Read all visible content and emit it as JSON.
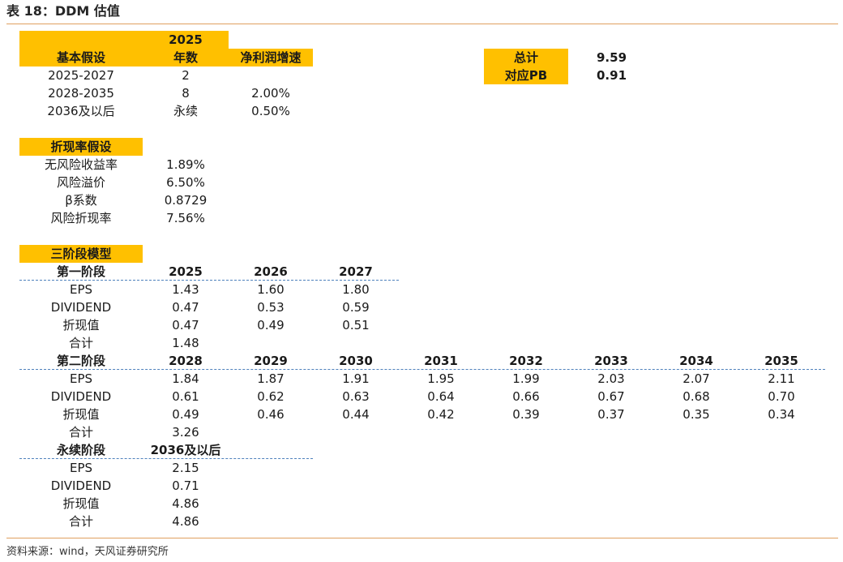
{
  "title": "表 18：DDM 估值",
  "source": "资料来源：wind，天风证券研究所",
  "colors": {
    "accent": "#ffc000",
    "rule": "#e0a060",
    "dashed": "#4f81bd"
  },
  "growth": {
    "h_year_top": "2025",
    "h_period": "基本假设",
    "h_years": "年数",
    "h_growth": "净利润增速",
    "rows": [
      {
        "period": "2025-2027",
        "years": "2",
        "growth": ""
      },
      {
        "period": "2028-2035",
        "years": "8",
        "growth": "2.00%"
      },
      {
        "period": "2036及以后",
        "years": "永续",
        "growth": "0.50%"
      }
    ]
  },
  "summary": {
    "total_label": "总计",
    "total_value": "9.59",
    "pb_label": "对应PB",
    "pb_value": "0.91"
  },
  "discount": {
    "header": "折现率假设",
    "rows": [
      {
        "label": "无风险收益率",
        "value": "1.89%"
      },
      {
        "label": "风险溢价",
        "value": "6.50%"
      },
      {
        "label": "β系数",
        "value": "0.8729"
      },
      {
        "label": "风险折现率",
        "value": "7.56%"
      }
    ]
  },
  "model": {
    "header": "三阶段模型",
    "stage1": {
      "label": "第一阶段",
      "years": [
        "2025",
        "2026",
        "2027"
      ],
      "rows": [
        {
          "label": "EPS",
          "values": [
            "1.43",
            "1.60",
            "1.80"
          ]
        },
        {
          "label": "DIVIDEND",
          "values": [
            "0.47",
            "0.53",
            "0.59"
          ]
        },
        {
          "label": "折现值",
          "values": [
            "0.47",
            "0.49",
            "0.51"
          ]
        },
        {
          "label": "合计",
          "values": [
            "1.48"
          ]
        }
      ]
    },
    "stage2": {
      "label": "第二阶段",
      "years": [
        "2028",
        "2029",
        "2030",
        "2031",
        "2032",
        "2033",
        "2034",
        "2035"
      ],
      "rows": [
        {
          "label": "EPS",
          "values": [
            "1.84",
            "1.87",
            "1.91",
            "1.95",
            "1.99",
            "2.03",
            "2.07",
            "2.11"
          ]
        },
        {
          "label": "DIVIDEND",
          "values": [
            "0.61",
            "0.62",
            "0.63",
            "0.64",
            "0.66",
            "0.67",
            "0.68",
            "0.70"
          ]
        },
        {
          "label": "折现值",
          "values": [
            "0.49",
            "0.46",
            "0.44",
            "0.42",
            "0.39",
            "0.37",
            "0.35",
            "0.34"
          ]
        },
        {
          "label": "合计",
          "values": [
            "3.26"
          ]
        }
      ]
    },
    "stage3": {
      "label": "永续阶段",
      "years": [
        "2036及以后"
      ],
      "rows": [
        {
          "label": "EPS",
          "values": [
            "2.15"
          ]
        },
        {
          "label": "DIVIDEND",
          "values": [
            "0.71"
          ]
        },
        {
          "label": "折现值",
          "values": [
            "4.86"
          ]
        },
        {
          "label": "合计",
          "values": [
            "4.86"
          ]
        }
      ]
    }
  }
}
